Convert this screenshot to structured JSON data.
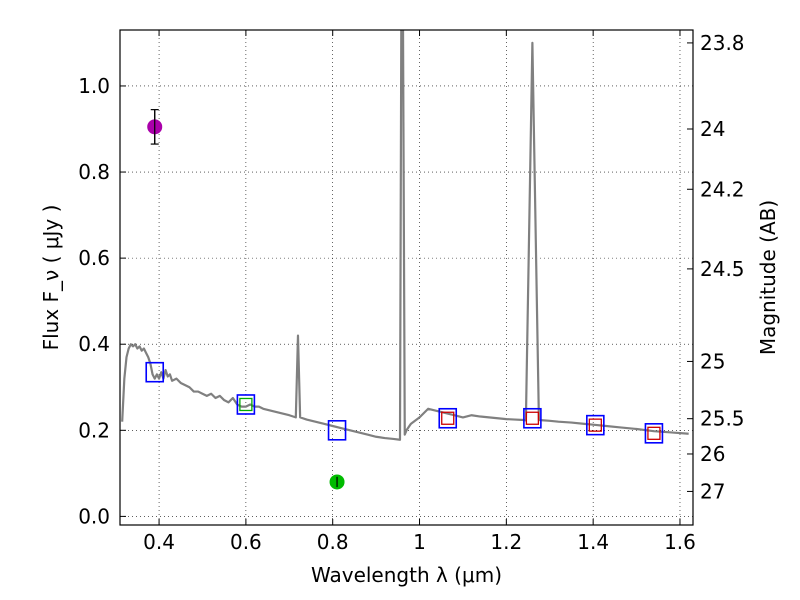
{
  "chart_data": {
    "type": "line",
    "title": "",
    "xlabel": "Wavelength  λ (μm)",
    "ylabel": "Flux  F_ν  ( μJy )",
    "ylabel_right": "Magnitude (AB)",
    "xlim": [
      0.31,
      1.63
    ],
    "ylim": [
      -0.02,
      1.13
    ],
    "grid": true,
    "x_ticks": [
      0.4,
      0.6,
      0.8,
      1.0,
      1.2,
      1.4,
      1.6
    ],
    "x_tick_labels": [
      "0.4",
      "0.6",
      "0.8",
      "1",
      "1.2",
      "1.4",
      "1.6"
    ],
    "y_ticks": [
      0.0,
      0.2,
      0.4,
      0.6,
      0.8,
      1.0
    ],
    "y_tick_labels": [
      "0.0",
      "0.2",
      "0.4",
      "0.6",
      "0.8",
      "1.0"
    ],
    "right_ticks": [
      {
        "label": "23.8",
        "flux": 1.1
      },
      {
        "label": "24",
        "flux": 0.9
      },
      {
        "label": "24.2",
        "flux": 0.76
      },
      {
        "label": "24.5",
        "flux": 0.575
      },
      {
        "label": "25",
        "flux": 0.36
      },
      {
        "label": "25.5",
        "flux": 0.227
      },
      {
        "label": "26",
        "flux": 0.145
      },
      {
        "label": "27",
        "flux": 0.058
      }
    ],
    "series": [
      {
        "name": "model spectrum",
        "kind": "line",
        "color": "#808080",
        "points": [
          [
            0.315,
            0.22
          ],
          [
            0.32,
            0.32
          ],
          [
            0.325,
            0.37
          ],
          [
            0.33,
            0.39
          ],
          [
            0.335,
            0.4
          ],
          [
            0.34,
            0.395
          ],
          [
            0.345,
            0.4
          ],
          [
            0.35,
            0.39
          ],
          [
            0.355,
            0.395
          ],
          [
            0.36,
            0.385
          ],
          [
            0.365,
            0.39
          ],
          [
            0.37,
            0.38
          ],
          [
            0.375,
            0.37
          ],
          [
            0.38,
            0.355
          ],
          [
            0.385,
            0.33
          ],
          [
            0.39,
            0.32
          ],
          [
            0.395,
            0.33
          ],
          [
            0.4,
            0.32
          ],
          [
            0.405,
            0.335
          ],
          [
            0.41,
            0.32
          ],
          [
            0.415,
            0.34
          ],
          [
            0.42,
            0.325
          ],
          [
            0.425,
            0.33
          ],
          [
            0.43,
            0.315
          ],
          [
            0.44,
            0.32
          ],
          [
            0.45,
            0.31
          ],
          [
            0.46,
            0.305
          ],
          [
            0.47,
            0.3
          ],
          [
            0.48,
            0.29
          ],
          [
            0.49,
            0.29
          ],
          [
            0.5,
            0.285
          ],
          [
            0.51,
            0.28
          ],
          [
            0.52,
            0.285
          ],
          [
            0.53,
            0.275
          ],
          [
            0.54,
            0.28
          ],
          [
            0.55,
            0.27
          ],
          [
            0.56,
            0.265
          ],
          [
            0.57,
            0.275
          ],
          [
            0.58,
            0.26
          ],
          [
            0.59,
            0.255
          ],
          [
            0.6,
            0.255
          ],
          [
            0.61,
            0.26
          ],
          [
            0.62,
            0.255
          ],
          [
            0.63,
            0.255
          ],
          [
            0.64,
            0.25
          ],
          [
            0.66,
            0.245
          ],
          [
            0.68,
            0.24
          ],
          [
            0.7,
            0.235
          ],
          [
            0.715,
            0.23
          ],
          [
            0.72,
            0.42
          ],
          [
            0.725,
            0.23
          ],
          [
            0.74,
            0.225
          ],
          [
            0.76,
            0.22
          ],
          [
            0.78,
            0.215
          ],
          [
            0.8,
            0.21
          ],
          [
            0.82,
            0.205
          ],
          [
            0.84,
            0.2
          ],
          [
            0.86,
            0.195
          ],
          [
            0.88,
            0.19
          ],
          [
            0.9,
            0.185
          ],
          [
            0.92,
            0.182
          ],
          [
            0.94,
            0.18
          ],
          [
            0.955,
            0.178
          ],
          [
            0.958,
            1.13
          ],
          [
            0.962,
            1.13
          ],
          [
            0.966,
            0.19
          ],
          [
            0.97,
            0.2
          ],
          [
            0.98,
            0.215
          ],
          [
            1.0,
            0.23
          ],
          [
            1.02,
            0.25
          ],
          [
            1.04,
            0.245
          ],
          [
            1.06,
            0.24
          ],
          [
            1.08,
            0.235
          ],
          [
            1.1,
            0.23
          ],
          [
            1.12,
            0.235
          ],
          [
            1.14,
            0.232
          ],
          [
            1.16,
            0.23
          ],
          [
            1.18,
            0.228
          ],
          [
            1.2,
            0.226
          ],
          [
            1.22,
            0.225
          ],
          [
            1.24,
            0.224
          ],
          [
            1.245,
            0.223
          ],
          [
            1.26,
            1.1
          ],
          [
            1.275,
            0.224
          ],
          [
            1.3,
            0.222
          ],
          [
            1.32,
            0.22
          ],
          [
            1.35,
            0.218
          ],
          [
            1.38,
            0.215
          ],
          [
            1.4,
            0.213
          ],
          [
            1.43,
            0.21
          ],
          [
            1.46,
            0.207
          ],
          [
            1.5,
            0.203
          ],
          [
            1.54,
            0.198
          ],
          [
            1.58,
            0.195
          ],
          [
            1.62,
            0.192
          ]
        ]
      },
      {
        "name": "photometry (blue squares)",
        "kind": "square",
        "color": "#0000ff",
        "x": [
          0.39,
          0.6,
          0.81,
          1.065,
          1.26,
          1.405,
          1.54
        ],
        "y": [
          0.335,
          0.26,
          0.2,
          0.228,
          0.228,
          0.212,
          0.193
        ]
      },
      {
        "name": "model photometry (red squares)",
        "kind": "small-square",
        "color": "#cc0000",
        "x": [
          1.065,
          1.26,
          1.405,
          1.54
        ],
        "y": [
          0.228,
          0.228,
          0.212,
          0.193
        ]
      },
      {
        "name": "model photometry (green square)",
        "kind": "small-square",
        "color": "#00aa00",
        "x": [
          0.6
        ],
        "y": [
          0.26
        ]
      },
      {
        "name": "magenta point",
        "kind": "errorbar-point",
        "color": "#aa00aa",
        "x": [
          0.39
        ],
        "y": [
          0.905
        ],
        "err": [
          0.04
        ]
      },
      {
        "name": "green point",
        "kind": "errorbar-point",
        "color": "#00bb00",
        "x": [
          0.81
        ],
        "y": [
          0.08
        ],
        "err": [
          0.012
        ]
      }
    ]
  }
}
